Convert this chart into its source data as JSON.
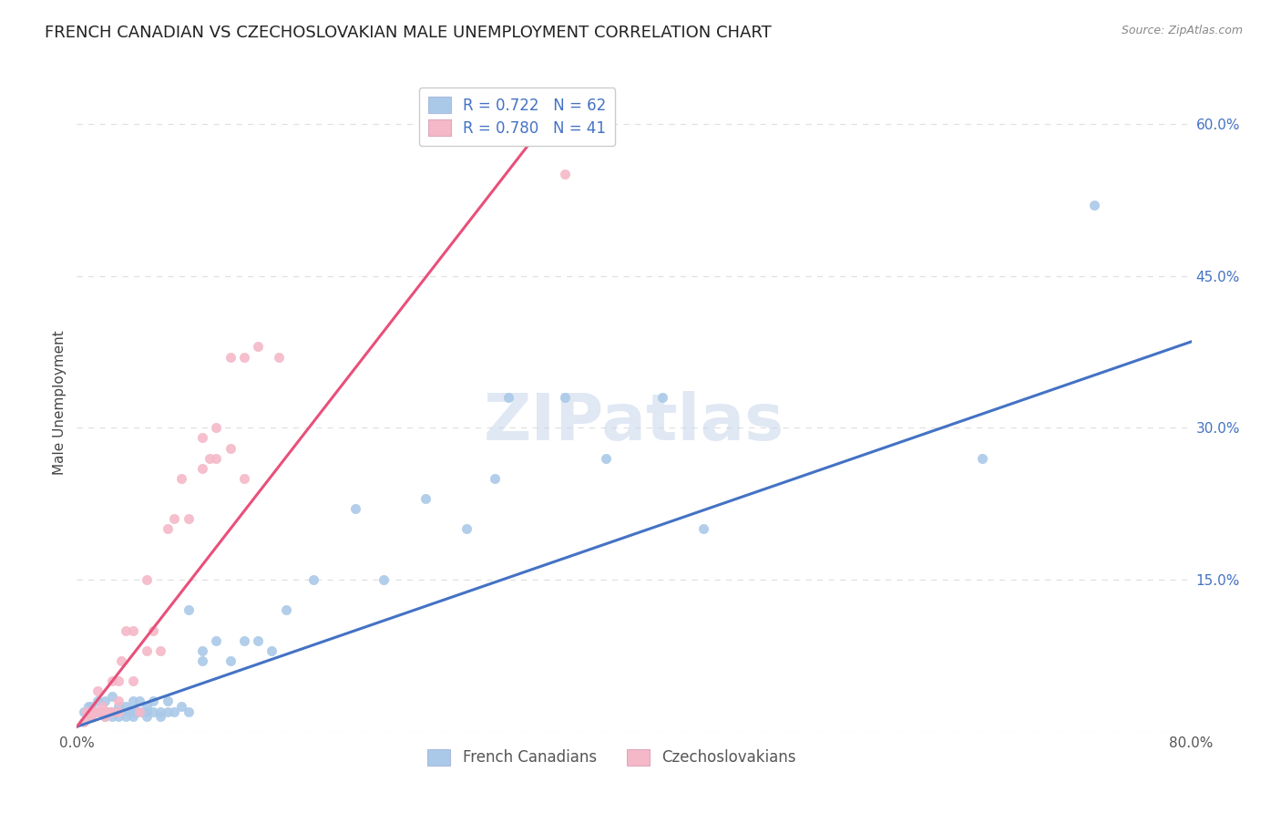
{
  "title": "FRENCH CANADIAN VS CZECHOSLOVAKIAN MALE UNEMPLOYMENT CORRELATION CHART",
  "source": "Source: ZipAtlas.com",
  "ylabel": "Male Unemployment",
  "xmin": 0.0,
  "xmax": 0.8,
  "ymin": 0.0,
  "ymax": 0.65,
  "xtick_positions": [
    0.0,
    0.2,
    0.4,
    0.6,
    0.8
  ],
  "xticklabels": [
    "0.0%",
    "",
    "",
    "",
    "80.0%"
  ],
  "ytick_positions": [
    0.0,
    0.15,
    0.3,
    0.45,
    0.6
  ],
  "ytick_labels": [
    "",
    "15.0%",
    "30.0%",
    "45.0%",
    "60.0%"
  ],
  "blue_color": "#aac9e8",
  "pink_color": "#f5b8c8",
  "blue_line_color": "#4472c4",
  "pink_line_color": "#e8507a",
  "legend_r_blue": "0.722",
  "legend_n_blue": "62",
  "legend_r_pink": "0.780",
  "legend_n_pink": "41",
  "legend_label_blue": "French Canadians",
  "legend_label_pink": "Czechoslovakians",
  "watermark": "ZIPatlas",
  "blue_scatter_x": [
    0.005,
    0.008,
    0.01,
    0.01,
    0.012,
    0.015,
    0.015,
    0.018,
    0.02,
    0.02,
    0.02,
    0.022,
    0.025,
    0.025,
    0.025,
    0.03,
    0.03,
    0.03,
    0.032,
    0.035,
    0.035,
    0.038,
    0.04,
    0.04,
    0.04,
    0.042,
    0.045,
    0.045,
    0.05,
    0.05,
    0.05,
    0.055,
    0.055,
    0.06,
    0.06,
    0.065,
    0.065,
    0.07,
    0.075,
    0.08,
    0.08,
    0.09,
    0.09,
    0.1,
    0.11,
    0.12,
    0.13,
    0.14,
    0.15,
    0.17,
    0.2,
    0.22,
    0.25,
    0.28,
    0.3,
    0.31,
    0.35,
    0.38,
    0.42,
    0.45,
    0.65,
    0.73
  ],
  "blue_scatter_y": [
    0.02,
    0.025,
    0.015,
    0.025,
    0.02,
    0.02,
    0.03,
    0.02,
    0.015,
    0.02,
    0.03,
    0.02,
    0.015,
    0.02,
    0.035,
    0.015,
    0.02,
    0.025,
    0.02,
    0.015,
    0.025,
    0.02,
    0.015,
    0.02,
    0.03,
    0.02,
    0.02,
    0.03,
    0.015,
    0.02,
    0.025,
    0.02,
    0.03,
    0.015,
    0.02,
    0.02,
    0.03,
    0.02,
    0.025,
    0.02,
    0.12,
    0.07,
    0.08,
    0.09,
    0.07,
    0.09,
    0.09,
    0.08,
    0.12,
    0.15,
    0.22,
    0.15,
    0.23,
    0.2,
    0.25,
    0.33,
    0.33,
    0.27,
    0.33,
    0.2,
    0.27,
    0.52
  ],
  "pink_scatter_x": [
    0.005,
    0.007,
    0.01,
    0.012,
    0.014,
    0.015,
    0.015,
    0.018,
    0.02,
    0.02,
    0.022,
    0.025,
    0.025,
    0.03,
    0.03,
    0.03,
    0.032,
    0.035,
    0.04,
    0.04,
    0.045,
    0.05,
    0.05,
    0.055,
    0.06,
    0.065,
    0.07,
    0.075,
    0.08,
    0.09,
    0.09,
    0.095,
    0.1,
    0.1,
    0.11,
    0.11,
    0.12,
    0.12,
    0.13,
    0.145,
    0.35
  ],
  "pink_scatter_y": [
    0.01,
    0.02,
    0.015,
    0.02,
    0.02,
    0.02,
    0.04,
    0.025,
    0.015,
    0.02,
    0.02,
    0.02,
    0.05,
    0.02,
    0.03,
    0.05,
    0.07,
    0.1,
    0.05,
    0.1,
    0.02,
    0.08,
    0.15,
    0.1,
    0.08,
    0.2,
    0.21,
    0.25,
    0.21,
    0.26,
    0.29,
    0.27,
    0.27,
    0.3,
    0.28,
    0.37,
    0.25,
    0.37,
    0.38,
    0.37,
    0.55
  ],
  "blue_line_x": [
    0.0,
    0.8
  ],
  "blue_line_y": [
    0.005,
    0.385
  ],
  "pink_line_x": [
    0.0,
    0.35
  ],
  "pink_line_y": [
    0.005,
    0.625
  ],
  "grid_color": "#e0e0e0",
  "background_color": "#ffffff",
  "title_fontsize": 13,
  "axis_label_fontsize": 11,
  "tick_fontsize": 11,
  "legend_fontsize": 12,
  "watermark_fontsize": 52,
  "watermark_color": "#ccd9ee",
  "watermark_alpha": 0.6,
  "scatter_size": 55
}
